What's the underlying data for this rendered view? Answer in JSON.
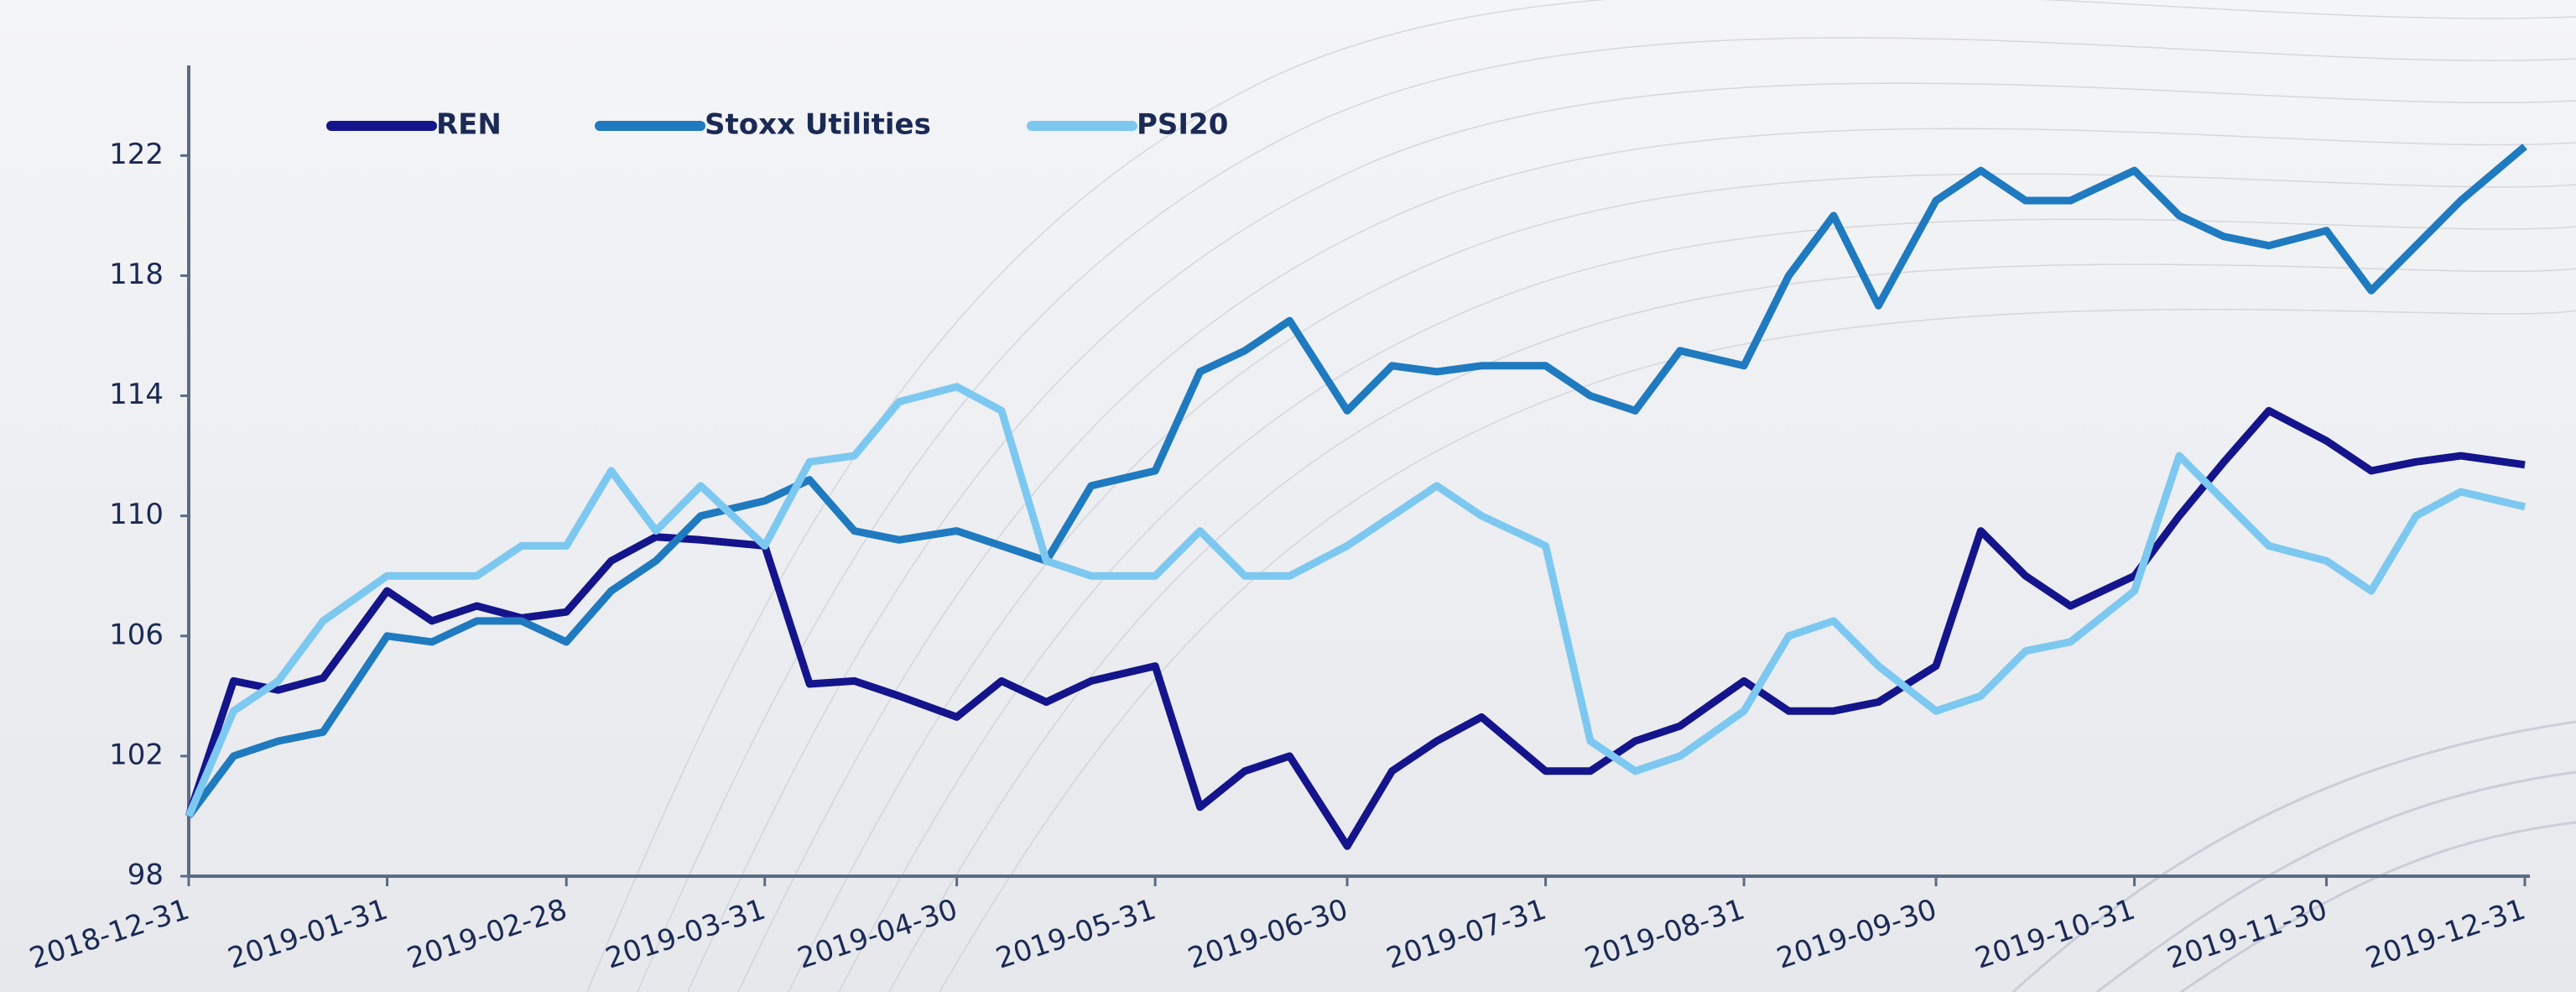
{
  "chart_data": {
    "type": "line",
    "x": [
      "2018-12-31",
      "2019-01-07",
      "2019-01-14",
      "2019-01-21",
      "2019-01-31",
      "2019-02-07",
      "2019-02-14",
      "2019-02-21",
      "2019-02-28",
      "2019-03-07",
      "2019-03-14",
      "2019-03-21",
      "2019-03-31",
      "2019-04-07",
      "2019-04-14",
      "2019-04-21",
      "2019-04-30",
      "2019-05-07",
      "2019-05-14",
      "2019-05-21",
      "2019-05-31",
      "2019-06-07",
      "2019-06-14",
      "2019-06-21",
      "2019-06-30",
      "2019-07-07",
      "2019-07-14",
      "2019-07-21",
      "2019-07-31",
      "2019-08-07",
      "2019-08-14",
      "2019-08-21",
      "2019-08-31",
      "2019-09-07",
      "2019-09-14",
      "2019-09-21",
      "2019-09-30",
      "2019-10-07",
      "2019-10-14",
      "2019-10-21",
      "2019-10-31",
      "2019-11-07",
      "2019-11-14",
      "2019-11-21",
      "2019-11-30",
      "2019-12-07",
      "2019-12-14",
      "2019-12-21",
      "2019-12-31"
    ],
    "series": [
      {
        "name": "REN",
        "color": "#14148c",
        "values": [
          100,
          104.5,
          104.2,
          104.6,
          107.5,
          106.5,
          107,
          106.6,
          106.8,
          108.5,
          109.3,
          109.2,
          109,
          104.4,
          104.5,
          104,
          103.3,
          104.5,
          103.8,
          104.5,
          105,
          100.3,
          101.5,
          102,
          99,
          101.5,
          102.5,
          103.3,
          101.5,
          101.5,
          102.5,
          103,
          104.5,
          103.5,
          103.5,
          103.8,
          105,
          109.5,
          108,
          107,
          108,
          110,
          111.8,
          113.5,
          112.5,
          111.5,
          111.8,
          112,
          111.7
        ]
      },
      {
        "name": "Stoxx Utilities",
        "color": "#1f7ac0",
        "values": [
          100,
          102,
          102.5,
          102.8,
          106,
          105.8,
          106.5,
          106.5,
          105.8,
          107.5,
          108.5,
          110,
          110.5,
          111.2,
          109.5,
          109.2,
          109.5,
          109,
          108.5,
          111,
          111.5,
          114.8,
          115.5,
          116.5,
          113.5,
          115,
          114.8,
          115,
          115,
          114,
          113.5,
          115.5,
          115,
          118,
          120,
          117,
          120.5,
          121.5,
          120.5,
          120.5,
          121.5,
          120,
          119.3,
          119,
          119.5,
          117.5,
          119,
          120.5,
          122.3
        ]
      },
      {
        "name": "PSI20",
        "color": "#7cc8f0",
        "values": [
          100,
          103.5,
          104.5,
          106.5,
          108,
          108,
          108,
          109,
          109,
          111.5,
          109.5,
          111,
          109,
          111.8,
          112,
          113.8,
          114.3,
          113.5,
          108.5,
          108,
          108,
          109.5,
          108,
          108,
          109,
          110,
          111,
          110,
          109,
          102.5,
          101.5,
          102,
          103.5,
          106,
          106.5,
          105,
          103.5,
          104,
          105.5,
          105.8,
          107.5,
          112,
          110.5,
          109,
          108.5,
          107.5,
          110,
          110.8,
          110.3
        ]
      }
    ],
    "xlim": [
      "2018-12-31",
      "2019-12-31"
    ],
    "xticks": [
      "2018-12-31",
      "2019-01-31",
      "2019-02-28",
      "2019-03-31",
      "2019-04-30",
      "2019-05-31",
      "2019-06-30",
      "2019-07-31",
      "2019-08-31",
      "2019-09-30",
      "2019-10-31",
      "2019-11-30",
      "2019-12-31"
    ],
    "ylim": [
      98,
      125
    ],
    "yticks": [
      98,
      102,
      106,
      110,
      114,
      118,
      122
    ],
    "legend": "top-left"
  }
}
